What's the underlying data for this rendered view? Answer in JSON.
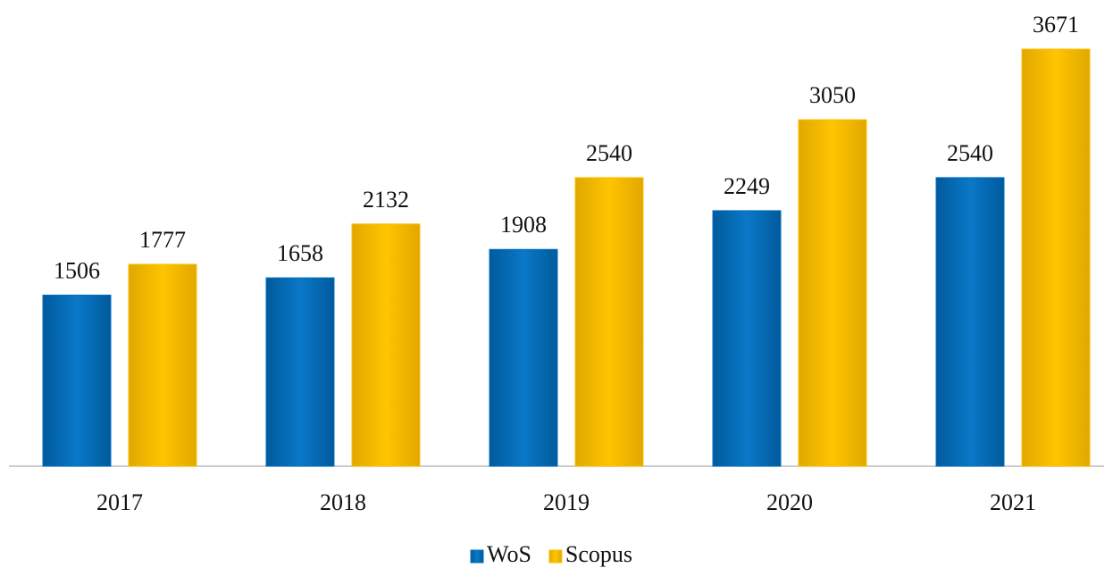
{
  "chart_data": {
    "type": "bar",
    "categories": [
      "2017",
      "2018",
      "2019",
      "2020",
      "2021"
    ],
    "series": [
      {
        "name": "WoS",
        "color": "#0070c0",
        "values": [
          1506,
          1658,
          1908,
          2249,
          2540
        ]
      },
      {
        "name": "Scopus",
        "color": "#ffc000",
        "values": [
          1777,
          2132,
          2540,
          3050,
          3671
        ]
      }
    ],
    "legend": "bottom"
  }
}
